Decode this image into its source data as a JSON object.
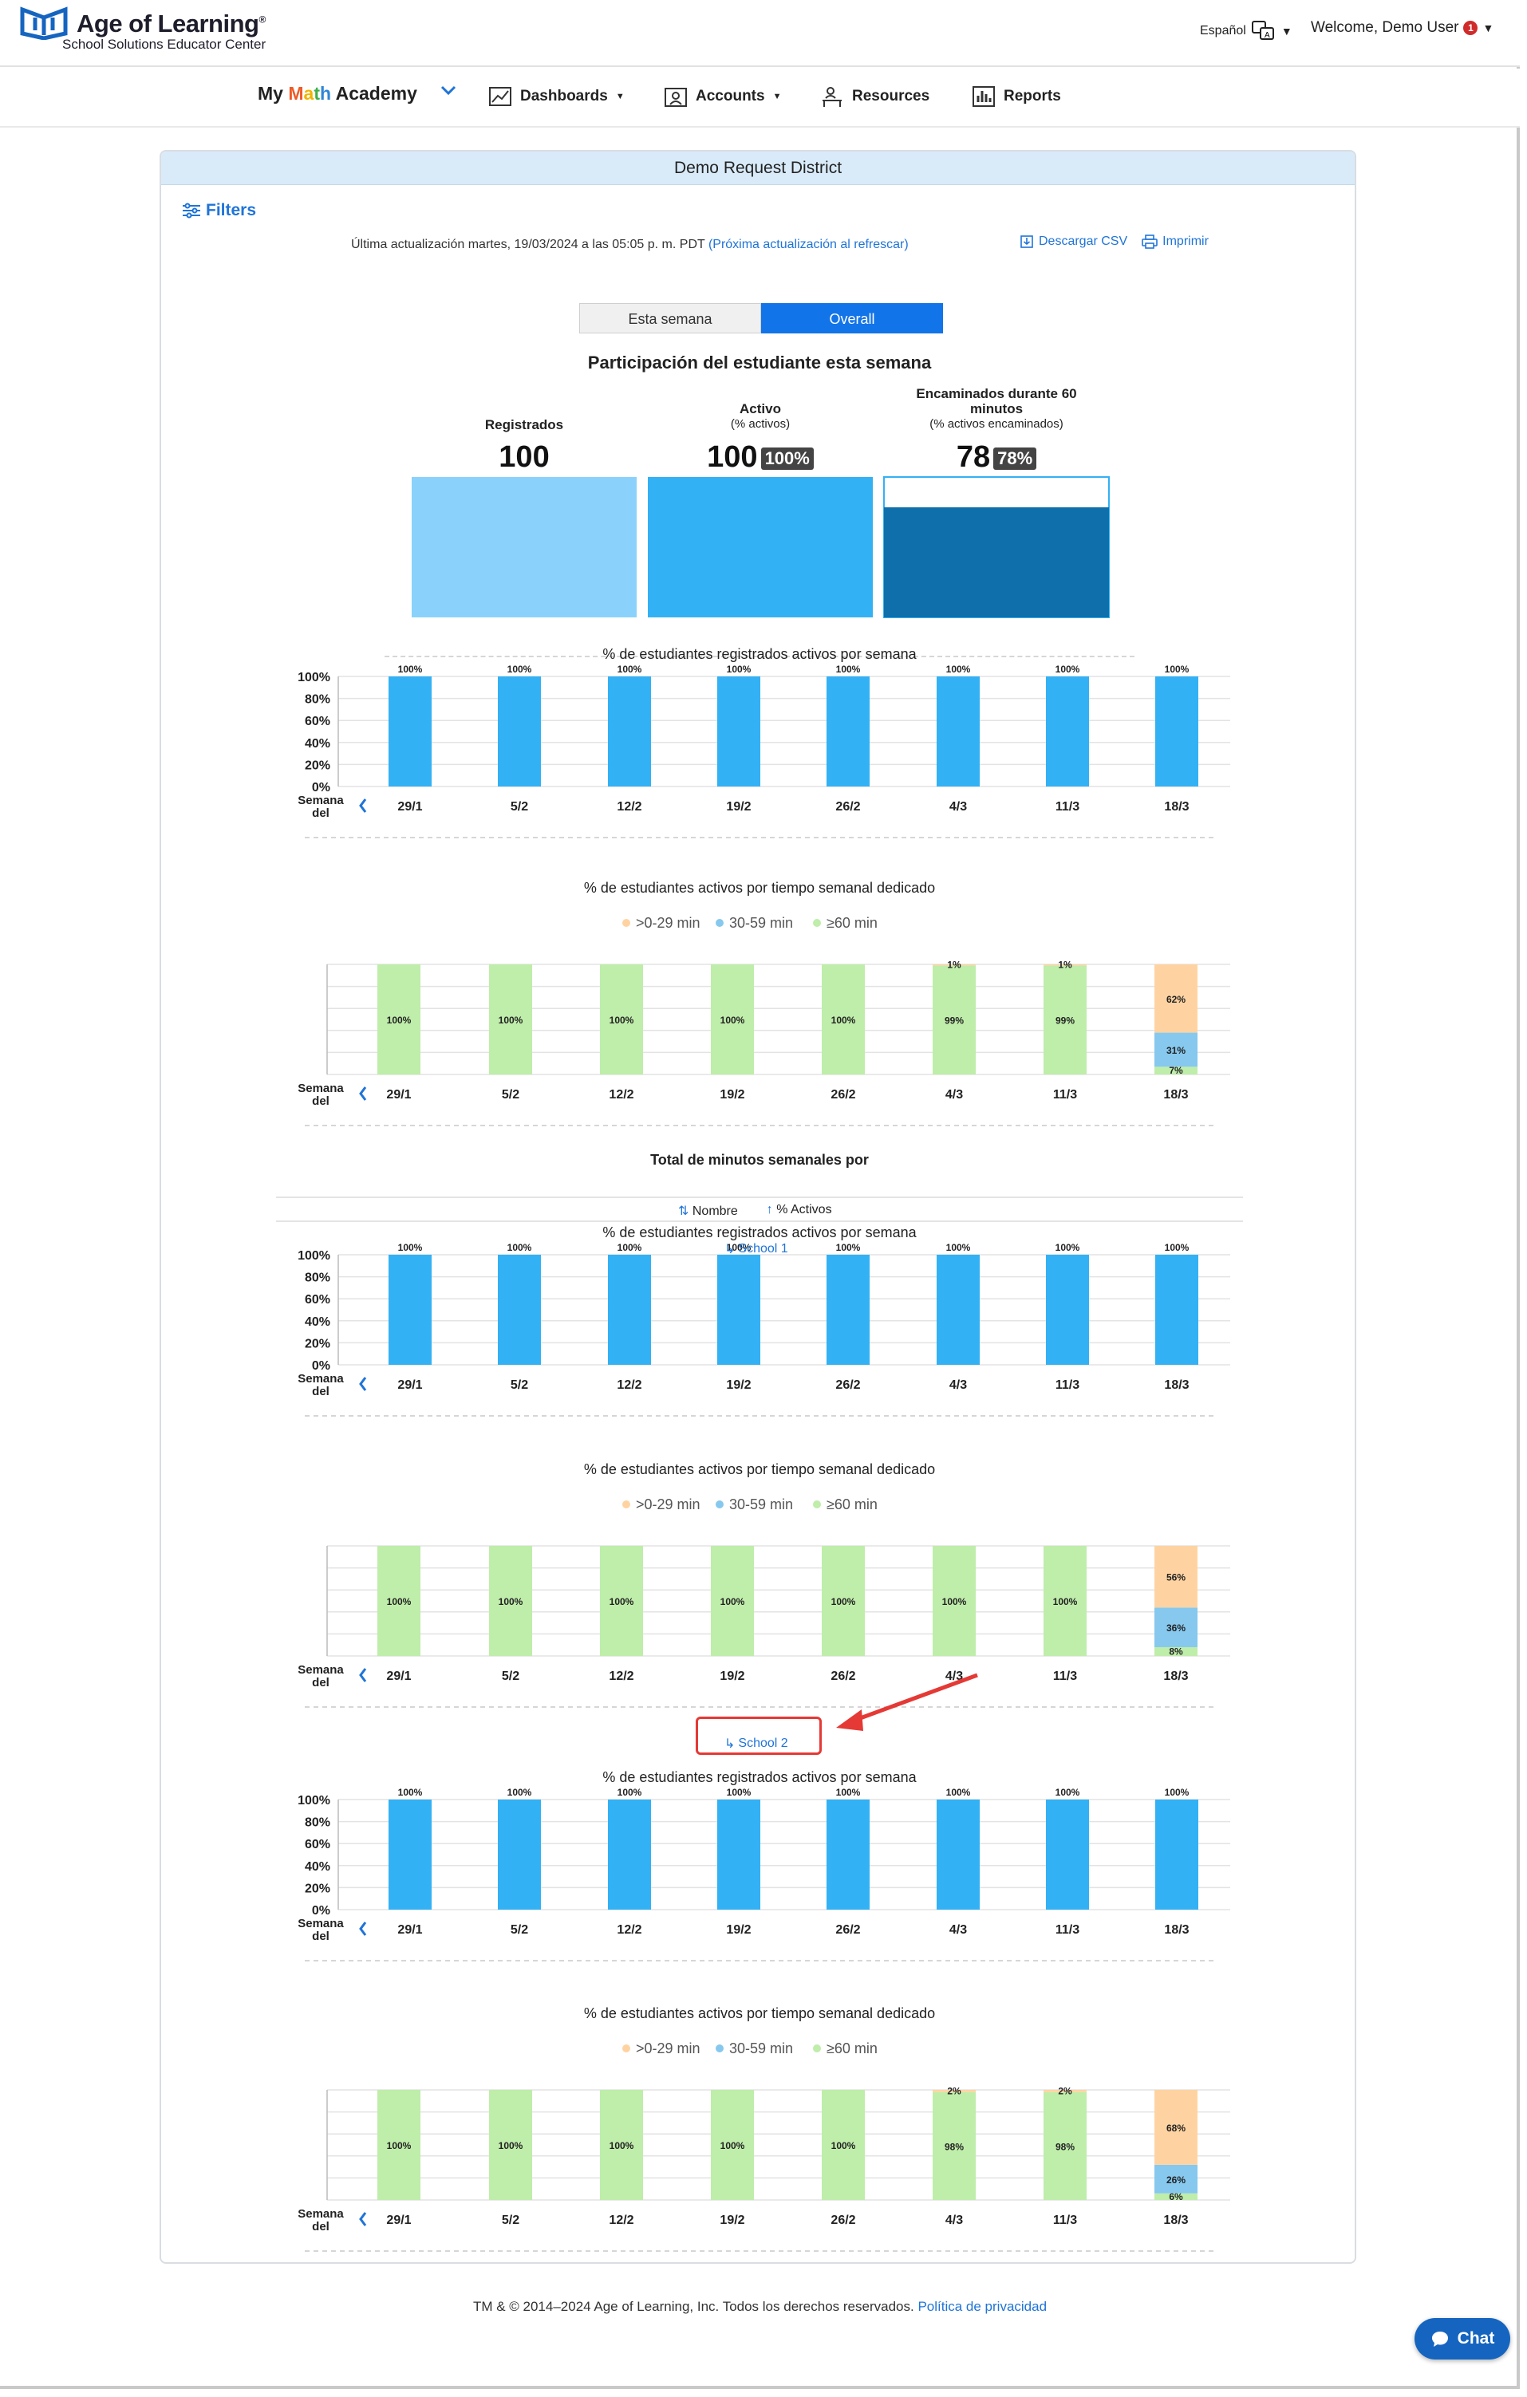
{
  "header": {
    "logo_title": "Age of Learning",
    "logo_tm": "®",
    "logo_subtitle": "School Solutions Educator Center",
    "language": "Español",
    "welcome": "Welcome, Demo User",
    "badge_count": "1"
  },
  "nav": {
    "brand_prefix": "My ",
    "brand_math": [
      "M",
      "a",
      "t",
      "h"
    ],
    "brand_suffix": " Academy",
    "items": [
      {
        "label": "Dashboards",
        "icon": "line-chart-icon",
        "dropdown": true
      },
      {
        "label": "Accounts",
        "icon": "user-card-icon",
        "dropdown": true
      },
      {
        "label": "Resources",
        "icon": "teacher-desk-icon",
        "dropdown": false
      },
      {
        "label": "Reports",
        "icon": "bar-report-icon",
        "dropdown": false
      }
    ]
  },
  "card": {
    "title": "Demo Request District",
    "filters": "Filters",
    "updated_text": "Última actualización martes, 19/03/2024 a las 05:05 p. m. PDT",
    "updated_link": "(Próxima actualización al refrescar)",
    "download_csv": "Descargar CSV",
    "print": "Imprimir",
    "toggle": [
      "Esta semana",
      "Overall"
    ],
    "participation_title": "Participación del estudiante esta semana",
    "kpis": [
      {
        "label": "Registrados",
        "sub": "",
        "value": "100",
        "pct": ""
      },
      {
        "label": "Activo",
        "sub": "(% activos)",
        "value": "100",
        "pct": "100%"
      },
      {
        "label": "Encaminados durante 60 minutos",
        "sub": "(% activos encaminados)",
        "value": "78",
        "pct": "78%"
      }
    ],
    "total_minutes_title": "Total de minutos semanales por",
    "sort": {
      "name": "Nombre",
      "active": "% Activos"
    },
    "schools": [
      "School 1",
      "School 2"
    ],
    "legend": [
      ">0-29 min",
      "30-59 min",
      "≥60 min"
    ]
  },
  "colors": {
    "bar_blue": "#33b1f5",
    "light_blue": "#8ad2fc",
    "dark_blue": "#0e6fab",
    "green": "#bfedaa",
    "mid_blue": "#86c8ee",
    "orange": "#ffd3a1",
    "link": "#1f74d8"
  },
  "chart_data": [
    {
      "type": "bar",
      "id": "district-active",
      "title": "% de estudiantes registrados activos por semana",
      "xlabel": "Semana del",
      "categories": [
        "29/1",
        "5/2",
        "12/2",
        "19/2",
        "26/2",
        "4/3",
        "11/3",
        "18/3"
      ],
      "values": [
        100,
        100,
        100,
        100,
        100,
        100,
        100,
        100
      ],
      "ylim": [
        0,
        100
      ],
      "yticks": [
        "100%",
        "80%",
        "60%",
        "40%",
        "20%",
        "0%"
      ]
    },
    {
      "type": "bar",
      "id": "district-time",
      "stacked": true,
      "title": "% de estudiantes activos por tiempo semanal dedicado",
      "xlabel": "Semana del",
      "categories": [
        "29/1",
        "5/2",
        "12/2",
        "19/2",
        "26/2",
        "4/3",
        "11/3",
        "18/3"
      ],
      "series": [
        {
          "name": "≥60 min",
          "values": [
            100,
            100,
            100,
            100,
            100,
            99,
            99,
            7
          ]
        },
        {
          "name": "30-59 min",
          "values": [
            0,
            0,
            0,
            0,
            0,
            0,
            0,
            31
          ]
        },
        {
          "name": ">0-29 min",
          "values": [
            0,
            0,
            0,
            0,
            0,
            1,
            1,
            62
          ]
        }
      ]
    },
    {
      "type": "bar",
      "id": "school1-active",
      "title": "% de estudiantes registrados activos por semana",
      "xlabel": "Semana del",
      "categories": [
        "29/1",
        "5/2",
        "12/2",
        "19/2",
        "26/2",
        "4/3",
        "11/3",
        "18/3"
      ],
      "values": [
        100,
        100,
        100,
        100,
        100,
        100,
        100,
        100
      ],
      "ylim": [
        0,
        100
      ],
      "yticks": [
        "100%",
        "80%",
        "60%",
        "40%",
        "20%",
        "0%"
      ]
    },
    {
      "type": "bar",
      "id": "school1-time",
      "stacked": true,
      "title": "% de estudiantes activos por tiempo semanal dedicado",
      "xlabel": "Semana del",
      "categories": [
        "29/1",
        "5/2",
        "12/2",
        "19/2",
        "26/2",
        "4/3",
        "11/3",
        "18/3"
      ],
      "series": [
        {
          "name": "≥60 min",
          "values": [
            100,
            100,
            100,
            100,
            100,
            100,
            100,
            8
          ]
        },
        {
          "name": "30-59 min",
          "values": [
            0,
            0,
            0,
            0,
            0,
            0,
            0,
            36
          ]
        },
        {
          "name": ">0-29 min",
          "values": [
            0,
            0,
            0,
            0,
            0,
            0,
            0,
            56
          ]
        }
      ]
    },
    {
      "type": "bar",
      "id": "school2-active",
      "title": "% de estudiantes registrados activos por semana",
      "xlabel": "Semana del",
      "categories": [
        "29/1",
        "5/2",
        "12/2",
        "19/2",
        "26/2",
        "4/3",
        "11/3",
        "18/3"
      ],
      "values": [
        100,
        100,
        100,
        100,
        100,
        100,
        100,
        100
      ],
      "ylim": [
        0,
        100
      ],
      "yticks": [
        "100%",
        "80%",
        "60%",
        "40%",
        "20%",
        "0%"
      ]
    },
    {
      "type": "bar",
      "id": "school2-time",
      "stacked": true,
      "title": "% de estudiantes activos por tiempo semanal dedicado",
      "xlabel": "Semana del",
      "categories": [
        "29/1",
        "5/2",
        "12/2",
        "19/2",
        "26/2",
        "4/3",
        "11/3",
        "18/3"
      ],
      "series": [
        {
          "name": "≥60 min",
          "values": [
            100,
            100,
            100,
            100,
            100,
            98,
            98,
            6
          ]
        },
        {
          "name": "30-59 min",
          "values": [
            0,
            0,
            0,
            0,
            0,
            0,
            0,
            26
          ]
        },
        {
          "name": ">0-29 min",
          "values": [
            0,
            0,
            0,
            0,
            0,
            2,
            2,
            68
          ]
        }
      ]
    }
  ],
  "footer": {
    "text": "TM & © 2014–2024 Age of Learning, Inc. Todos los derechos reservados.",
    "privacy": "Política de privacidad"
  },
  "chat": "Chat"
}
